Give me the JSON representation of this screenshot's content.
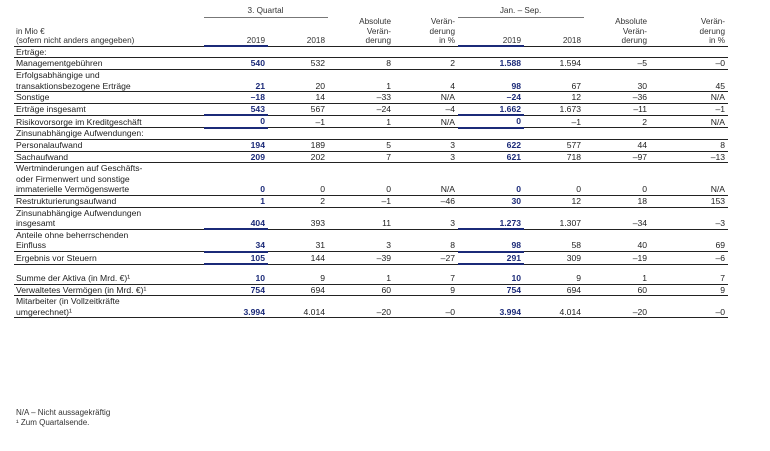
{
  "header": {
    "group_quarter": "3. Quartal",
    "group_ytd": "Jan. – Sep.",
    "unit_line1": "in Mio €",
    "unit_line2": "(sofern nicht anders angegeben)",
    "col_2019": "2019",
    "col_2018": "2018",
    "abs_line1": "Absolute",
    "abs_line2": "Verän-",
    "abs_line3": "derung",
    "pct_line1": "Verän-",
    "pct_line2": "derung",
    "pct_line3": "in %"
  },
  "rows": [
    {
      "label": "Erträge:",
      "kind": "section"
    },
    {
      "label": "Managementgebühren",
      "v": [
        "540",
        "532",
        "8",
        "2",
        "1.588",
        "1.594",
        "–5",
        "–0"
      ]
    },
    {
      "label": "Erfolgsabhängige und",
      "label2": "transaktionsbezogene Erträge",
      "v": [
        "21",
        "20",
        "1",
        "4",
        "98",
        "67",
        "30",
        "45"
      ]
    },
    {
      "label": "Sonstige",
      "v": [
        "–18",
        "14",
        "–33",
        "N/A",
        "–24",
        "12",
        "–36",
        "N/A"
      ]
    },
    {
      "label": "Erträge insgesamt",
      "v": [
        "543",
        "567",
        "–24",
        "–4",
        "1.662",
        "1.673",
        "–11",
        "–1"
      ],
      "kind": "total"
    },
    {
      "label": "Risikovorsorge im Kreditgeschäft",
      "v": [
        "0",
        "–1",
        "1",
        "N/A",
        "0",
        "–1",
        "2",
        "N/A"
      ],
      "kind": "total"
    },
    {
      "label": "Zinsunabhängige Aufwendungen:",
      "kind": "section"
    },
    {
      "label": "Personalaufwand",
      "v": [
        "194",
        "189",
        "5",
        "3",
        "622",
        "577",
        "44",
        "8"
      ]
    },
    {
      "label": "Sachaufwand",
      "v": [
        "209",
        "202",
        "7",
        "3",
        "621",
        "718",
        "–97",
        "–13"
      ]
    },
    {
      "label": "Wertminderungen auf Geschäfts-",
      "label2": "oder Firmenwert und sonstige",
      "label3": "immaterielle Vermögenswerte",
      "v": [
        "0",
        "0",
        "0",
        "N/A",
        "0",
        "0",
        "0",
        "N/A"
      ]
    },
    {
      "label": "Restrukturierungsaufwand",
      "v": [
        "1",
        "2",
        "–1",
        "–46",
        "30",
        "12",
        "18",
        "153"
      ]
    },
    {
      "label": "Zinsunabhängige Aufwendungen",
      "label2": "insgesamt",
      "v": [
        "404",
        "393",
        "11",
        "3",
        "1.273",
        "1.307",
        "–34",
        "–3"
      ],
      "kind": "total"
    },
    {
      "label": "Anteile ohne beherrschenden",
      "label2": "Einfluss",
      "v": [
        "34",
        "31",
        "3",
        "8",
        "98",
        "58",
        "40",
        "69"
      ],
      "kind": "total"
    },
    {
      "label": "Ergebnis vor Steuern",
      "v": [
        "105",
        "144",
        "–39",
        "–27",
        "291",
        "309",
        "–19",
        "–6"
      ],
      "kind": "total"
    },
    {
      "label": "Summe der Aktiva (in Mrd. €)¹",
      "v": [
        "10",
        "9",
        "1",
        "7",
        "10",
        "9",
        "1",
        "7"
      ]
    },
    {
      "label": "Verwaltetes Vermögen (in Mrd. €)¹",
      "v": [
        "754",
        "694",
        "60",
        "9",
        "754",
        "694",
        "60",
        "9"
      ]
    },
    {
      "label": "Mitarbeiter (in Vollzeitkräfte",
      "label2": "umgerechnet)¹",
      "v": [
        "3.994",
        "4.014",
        "–20",
        "–0",
        "3.994",
        "4.014",
        "–20",
        "–0"
      ]
    }
  ],
  "footnotes": {
    "na": "N/A – Nicht aussagekräftig",
    "one": "¹  Zum Quartalsende."
  }
}
